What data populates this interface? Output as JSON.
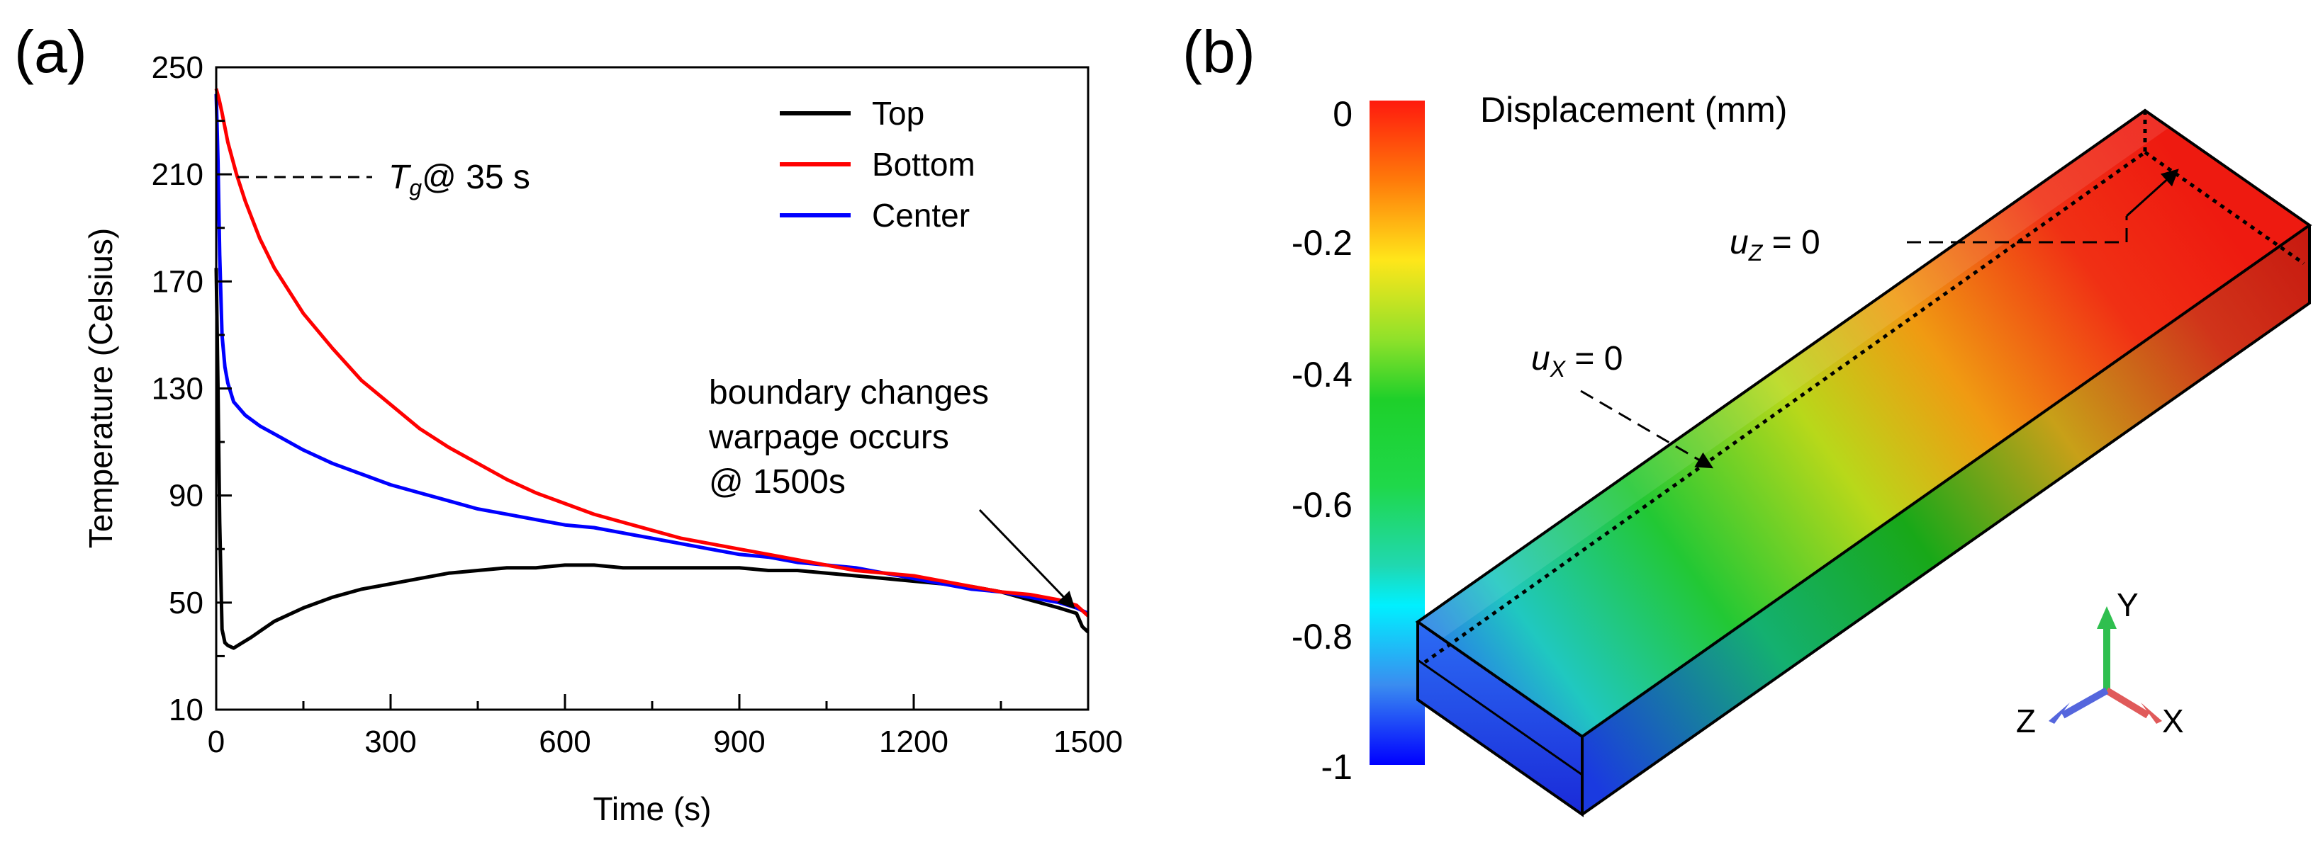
{
  "panel_a": {
    "label": "(a)",
    "annotation_tg_symbol": "T",
    "annotation_tg_sub": "g",
    "annotation_tg_rest": "@ 35 s",
    "annotation_boundary": [
      "boundary changes",
      "warpage occurs",
      "@ 1500s"
    ]
  },
  "panel_b": {
    "label": "(b)",
    "colorbar_title": "Displacement (mm)",
    "colorbar_ticks": [
      "0",
      "-0.2",
      "-0.4",
      "-0.6",
      "-0.8",
      "-1"
    ],
    "bc_uz_var": "u",
    "bc_uz_sub": "Z",
    "bc_uz_rest": " = 0",
    "bc_ux_var": "u",
    "bc_ux_sub": "X",
    "bc_ux_rest": " = 0",
    "triad_labels": {
      "x": "X",
      "y": "Y",
      "z": "Z"
    },
    "colors": {
      "x_axis": "#e05a5a",
      "y_axis": "#2fbf4f",
      "z_axis": "#5566dd"
    }
  },
  "chart_data": {
    "type": "line",
    "title": "",
    "xlabel": "Time (s)",
    "ylabel": "Temperature (Celsius)",
    "xlim": [
      0,
      1500
    ],
    "ylim": [
      10,
      250
    ],
    "xticks": [
      0,
      300,
      600,
      900,
      1200,
      1500
    ],
    "yticks": [
      10,
      50,
      90,
      130,
      170,
      210,
      250
    ],
    "grid": false,
    "legend_position": "top-right",
    "series": [
      {
        "name": "Top",
        "color": "#000000",
        "x": [
          0,
          3,
          6,
          10,
          15,
          20,
          30,
          45,
          60,
          80,
          100,
          150,
          200,
          250,
          300,
          350,
          400,
          450,
          500,
          550,
          600,
          650,
          700,
          750,
          800,
          850,
          900,
          950,
          1000,
          1050,
          1100,
          1150,
          1200,
          1250,
          1300,
          1350,
          1400,
          1450,
          1480,
          1490,
          1500
        ],
        "y": [
          175,
          130,
          80,
          40,
          35,
          34,
          33,
          35,
          37,
          40,
          43,
          48,
          52,
          55,
          57,
          59,
          61,
          62,
          63,
          63,
          64,
          64,
          63,
          63,
          63,
          63,
          63,
          62,
          62,
          61,
          60,
          59,
          58,
          57,
          56,
          54,
          51,
          48,
          46,
          41,
          39
        ]
      },
      {
        "name": "Bottom",
        "color": "#ff0000",
        "x": [
          0,
          5,
          10,
          20,
          35,
          50,
          75,
          100,
          150,
          200,
          250,
          300,
          350,
          400,
          450,
          500,
          550,
          600,
          650,
          700,
          750,
          800,
          850,
          900,
          950,
          1000,
          1050,
          1100,
          1150,
          1200,
          1250,
          1300,
          1350,
          1400,
          1450,
          1480,
          1500
        ],
        "y": [
          242,
          238,
          233,
          222,
          210,
          200,
          186,
          175,
          158,
          145,
          133,
          124,
          115,
          108,
          102,
          96,
          91,
          87,
          83,
          80,
          77,
          74,
          72,
          70,
          68,
          66,
          64,
          62,
          61,
          60,
          58,
          56,
          54,
          53,
          51,
          49,
          45
        ]
      },
      {
        "name": "Center",
        "color": "#0000ff",
        "x": [
          0,
          3,
          6,
          10,
          15,
          20,
          30,
          50,
          75,
          100,
          150,
          200,
          250,
          300,
          350,
          400,
          450,
          500,
          550,
          600,
          650,
          700,
          750,
          800,
          850,
          900,
          950,
          1000,
          1050,
          1100,
          1150,
          1200,
          1250,
          1300,
          1350,
          1400,
          1450,
          1480,
          1500
        ],
        "y": [
          240,
          215,
          180,
          150,
          138,
          132,
          125,
          120,
          116,
          113,
          107,
          102,
          98,
          94,
          91,
          88,
          85,
          83,
          81,
          79,
          78,
          76,
          74,
          72,
          70,
          68,
          67,
          65,
          64,
          63,
          61,
          59,
          57,
          55,
          54,
          52,
          50,
          48,
          46
        ]
      }
    ]
  }
}
